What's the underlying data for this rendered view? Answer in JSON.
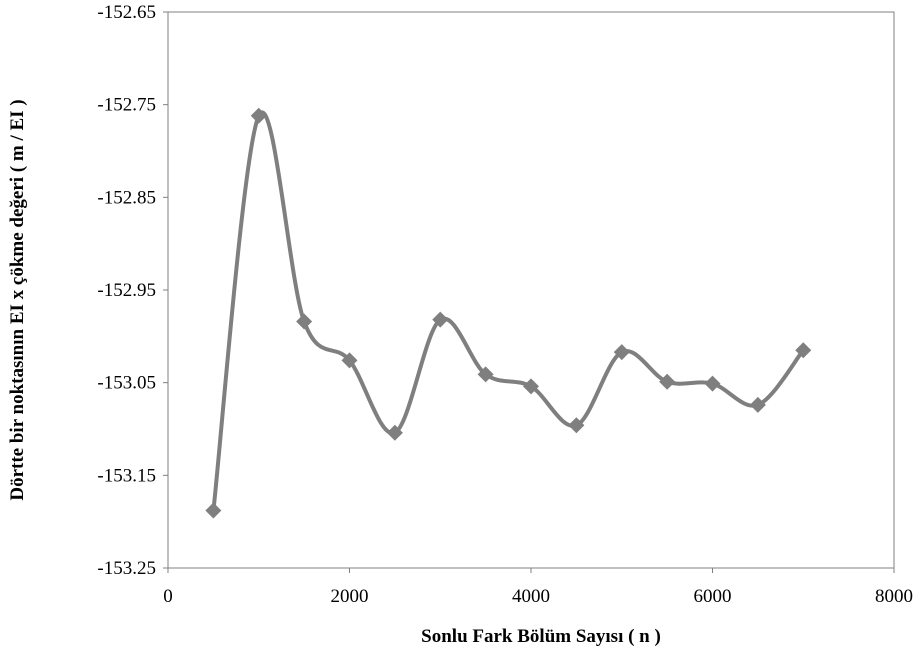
{
  "chart_data": {
    "type": "scatter",
    "title": "",
    "xlabel": "Sonlu Fark Bölüm Sayısı  ( n )",
    "ylabel": "Dörtte bir noktasının EI x çökme değeri   ( m / EI )",
    "xlim": [
      0,
      8000
    ],
    "ylim": [
      -153.25,
      -152.65
    ],
    "xticks": [
      "0",
      "2000",
      "4000",
      "6000",
      "8000"
    ],
    "yticks": [
      "-152.65",
      "-152.75",
      "-152.85",
      "-152.95",
      "-153.05",
      "-153.15",
      "-153.25"
    ],
    "grid": false,
    "line_style": "smooth",
    "marker": "diamond",
    "series_color": "#7f7f7f",
    "series": [
      {
        "x": [
          500,
          1000,
          1500,
          2000,
          2500,
          3000,
          3500,
          4000,
          4500,
          5000,
          5500,
          6000,
          6500,
          7000
        ],
        "y": [
          -153.188,
          -152.762,
          -152.984,
          -153.026,
          -153.104,
          -152.982,
          -153.041,
          -153.054,
          -153.096,
          -153.017,
          -153.049,
          -153.051,
          -153.074,
          -153.015
        ]
      }
    ]
  }
}
